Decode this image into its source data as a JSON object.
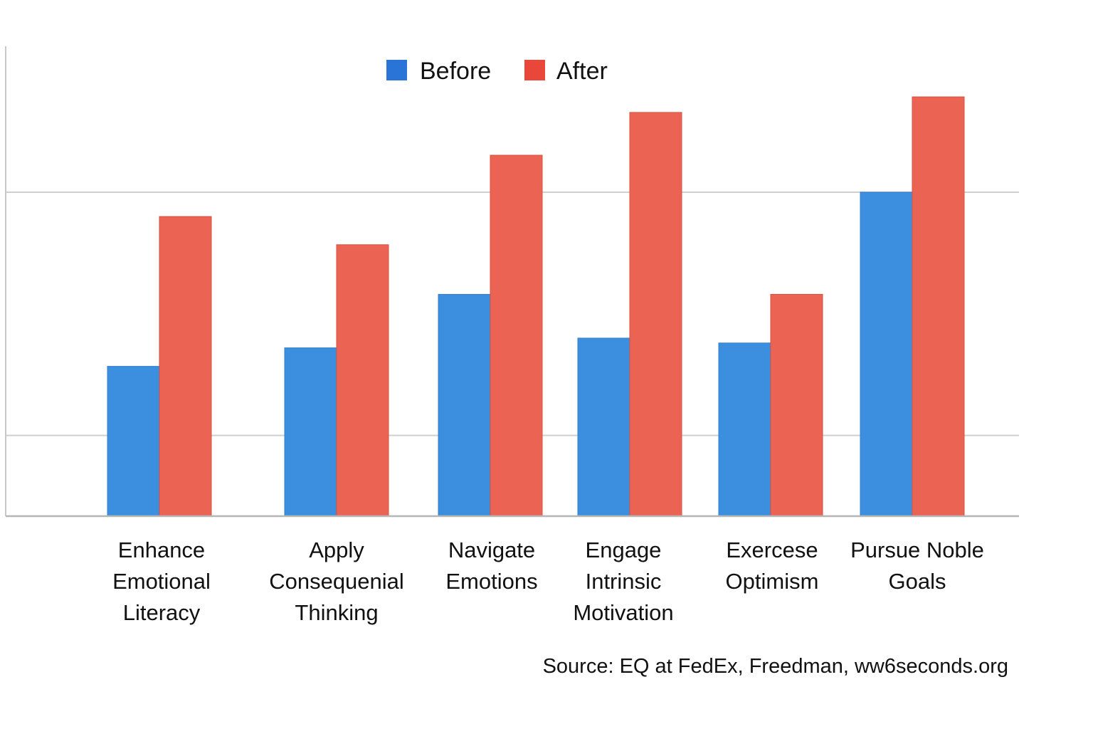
{
  "chart_data": {
    "type": "bar",
    "categories": [
      [
        "Enhance",
        "Emotional",
        "Literacy"
      ],
      [
        "Apply",
        "Consequenial",
        "Thinking"
      ],
      [
        "Navigate",
        "Emotions"
      ],
      [
        "Engage",
        "Intrinsic",
        "Motivation"
      ],
      [
        "Exercese",
        "Optimism"
      ],
      [
        "Pursue Noble",
        "Goals"
      ]
    ],
    "series": [
      {
        "name": "Before",
        "color": "#3c8ede",
        "legend_color": "#2a74d8",
        "values": [
          1.21,
          1.4,
          1.95,
          1.5,
          1.45,
          3.0
        ]
      },
      {
        "name": "After",
        "color": "#eb6353",
        "legend_color": "#e8473a",
        "values": [
          2.75,
          2.46,
          3.38,
          3.82,
          1.95,
          3.98
        ]
      }
    ],
    "ylim": [
      -0.33,
      4.5
    ],
    "gridlines": [
      0.5,
      3.0,
      5.5
    ],
    "grid": true,
    "legend_position": "top-center",
    "title": "",
    "xlabel": "",
    "ylabel": "",
    "source": "Source: EQ at FedEx, Freedman, ww6seconds.org"
  }
}
